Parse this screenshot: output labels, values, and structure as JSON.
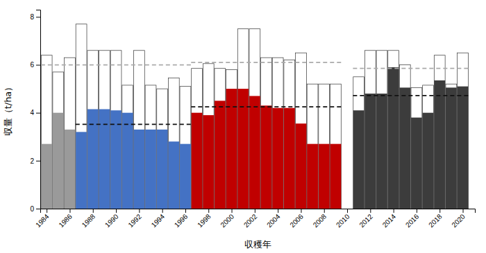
{
  "chart_data": {
    "type": "bar",
    "xlabel": "収穫年",
    "ylabel": "収量（t/ha）",
    "x": [
      1984,
      1985,
      1986,
      1987,
      1988,
      1989,
      1990,
      1991,
      1992,
      1993,
      1994,
      1995,
      1996,
      1997,
      1998,
      1999,
      2000,
      2001,
      2002,
      2003,
      2004,
      2005,
      2006,
      2007,
      2008,
      2009,
      2011,
      2012,
      2013,
      2014,
      2015,
      2016,
      2017,
      2018,
      2019,
      2020
    ],
    "xlim": [
      1983.45,
      2021.05
    ],
    "xticks": [
      1984,
      1986,
      1988,
      1990,
      1992,
      1994,
      1996,
      1998,
      2000,
      2002,
      2004,
      2006,
      2008,
      2010,
      2012,
      2014,
      2016,
      2018,
      2020
    ],
    "ylim": [
      0,
      8.3
    ],
    "yticks": [
      0,
      2,
      4,
      6,
      8
    ],
    "series": [
      {
        "type": "bar",
        "color": "#ffffff",
        "values": [
          6.4,
          5.7,
          6.3,
          7.7,
          6.6,
          6.6,
          6.6,
          5.15,
          6.6,
          5.15,
          5.0,
          5.45,
          5.1,
          5.85,
          6.05,
          5.85,
          5.8,
          7.5,
          7.5,
          6.3,
          6.3,
          6.2,
          6.5,
          5.2,
          5.2,
          5.2,
          5.5,
          6.6,
          6.6,
          6.6,
          6.0,
          5.05,
          5.15,
          6.4,
          5.2,
          6.5
        ]
      },
      {
        "type": "bar",
        "colors": [
          "#9a9a9a",
          "#9a9a9a",
          "#9a9a9a",
          "#4472c4",
          "#4472c4",
          "#4472c4",
          "#4472c4",
          "#4472c4",
          "#4472c4",
          "#4472c4",
          "#4472c4",
          "#4472c4",
          "#4472c4",
          "#c00000",
          "#c00000",
          "#c00000",
          "#c00000",
          "#c00000",
          "#c00000",
          "#c00000",
          "#c00000",
          "#c00000",
          "#c00000",
          "#c00000",
          "#c00000",
          "#c00000",
          "#3c3c3c",
          "#3c3c3c",
          "#3c3c3c",
          "#3c3c3c",
          "#3c3c3c",
          "#3c3c3c",
          "#3c3c3c",
          "#3c3c3c",
          "#3c3c3c",
          "#3c3c3c"
        ],
        "values": [
          2.7,
          4.0,
          3.3,
          3.2,
          4.15,
          4.15,
          4.1,
          4.0,
          3.3,
          3.3,
          3.3,
          2.8,
          2.7,
          4.0,
          3.9,
          4.5,
          5.0,
          5.0,
          4.7,
          4.3,
          4.2,
          4.2,
          3.55,
          2.7,
          2.7,
          2.7,
          4.1,
          4.8,
          4.8,
          5.9,
          5.05,
          3.8,
          4.0,
          5.35,
          5.05,
          5.1
        ]
      },
      {
        "type": "line",
        "line_style": "dashed",
        "color": "#111111",
        "x": [
          1986.5,
          1996.5
        ],
        "values": [
          3.52,
          3.52
        ]
      },
      {
        "type": "line",
        "line_style": "dashed",
        "color": "#111111",
        "x": [
          1996.5,
          2009.5
        ],
        "values": [
          4.25,
          4.25
        ]
      },
      {
        "type": "line",
        "line_style": "dashed",
        "color": "#111111",
        "x": [
          2010.5,
          2020.5
        ],
        "values": [
          4.72,
          4.72
        ]
      },
      {
        "type": "line",
        "line_style": "dashed",
        "color": "#aaaaaa",
        "x": [
          1983.5,
          1996.5
        ],
        "values": [
          6.0,
          6.0
        ]
      },
      {
        "type": "line",
        "line_style": "dashed",
        "color": "#aaaaaa",
        "x": [
          1996.5,
          2009.5
        ],
        "values": [
          6.1,
          6.1
        ]
      },
      {
        "type": "line",
        "line_style": "dashed",
        "color": "#aaaaaa",
        "x": [
          2010.5,
          2020.5
        ],
        "values": [
          5.85,
          5.85
        ]
      }
    ]
  }
}
